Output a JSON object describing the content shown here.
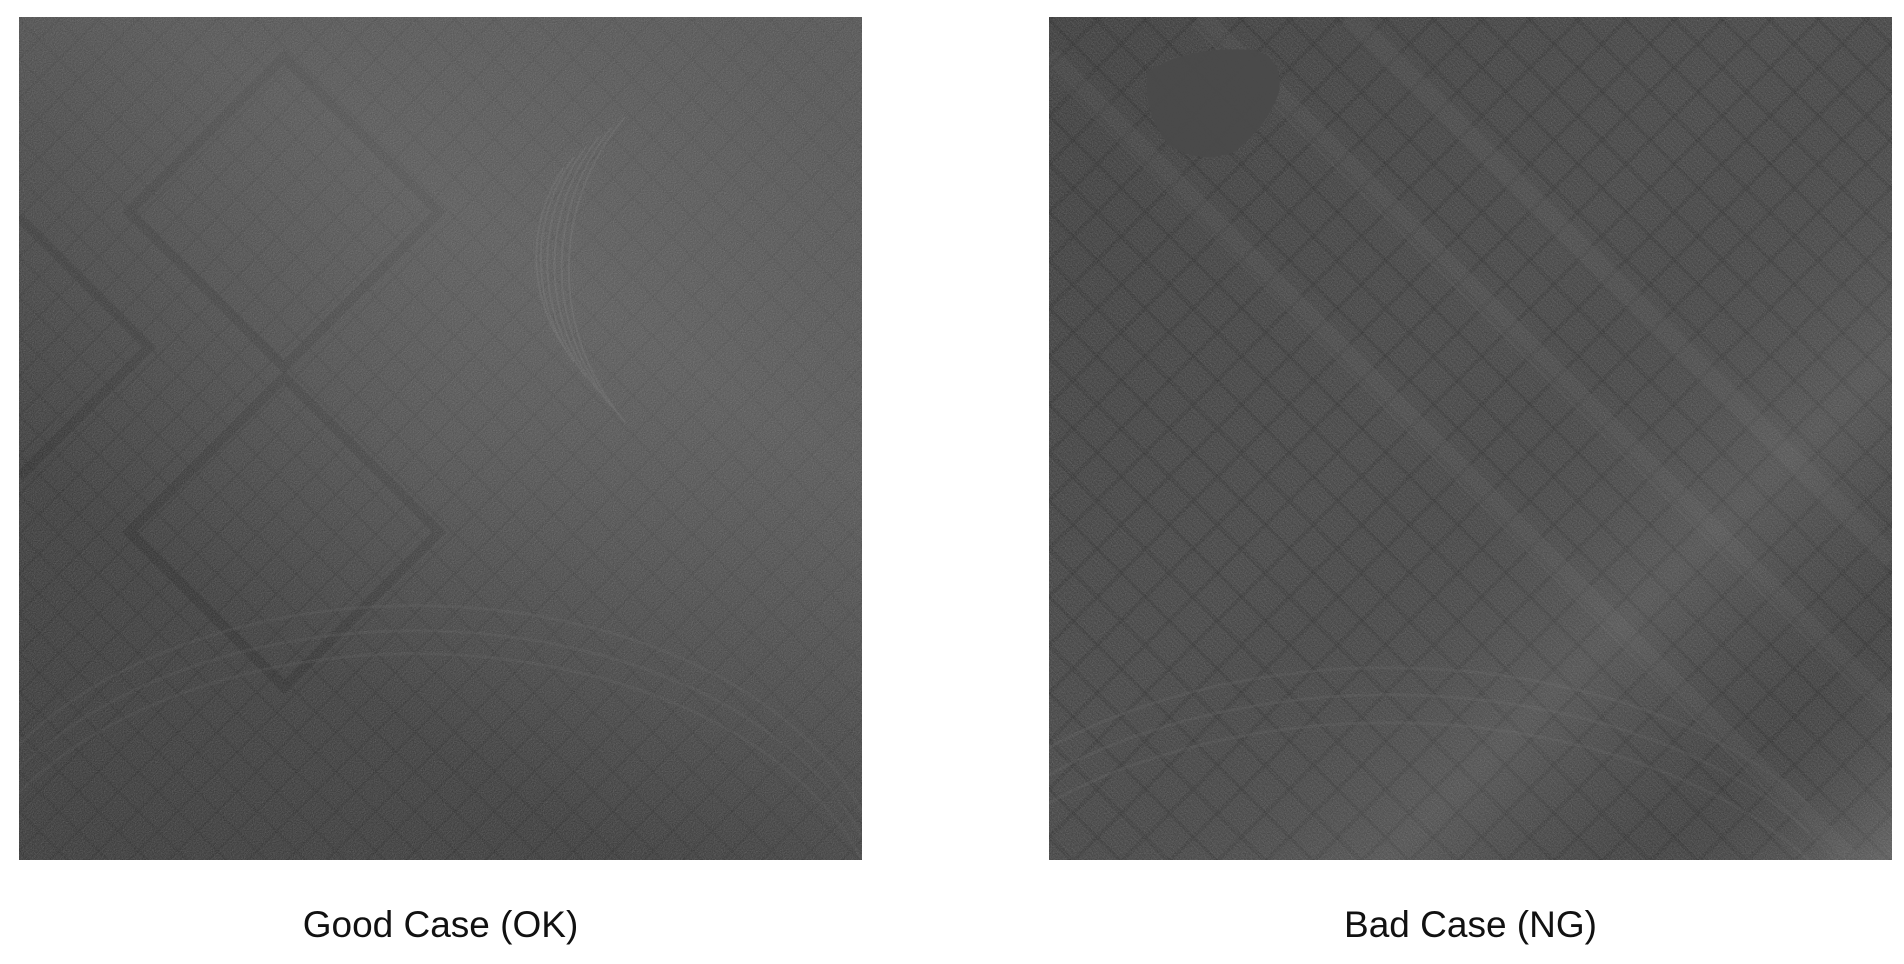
{
  "panels": [
    {
      "key": "good",
      "caption": "Good Case (OK)",
      "description_icon": "ultrasound-speckle-texture-image",
      "base_color": "#3b3b3b"
    },
    {
      "key": "bad",
      "caption": "Bad Case (NG)",
      "description_icon": "ultrasound-speckle-texture-image-with-defect",
      "base_color": "#3d3d3d",
      "defect_color": "#4a4a4a"
    }
  ]
}
